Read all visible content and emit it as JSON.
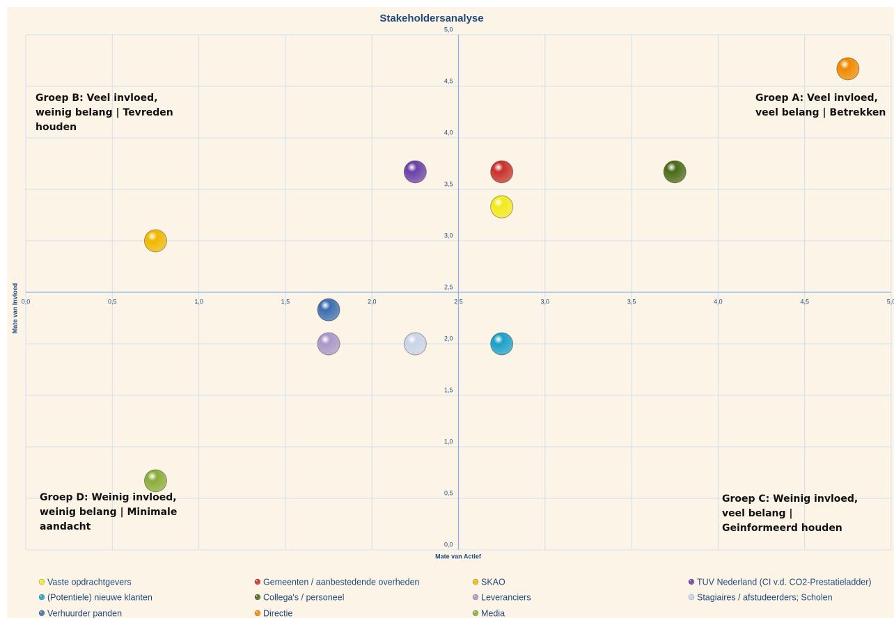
{
  "chart_data": {
    "type": "scatter",
    "title": "Stakeholdersanalyse",
    "x_label": "Mate van Actief",
    "y_label": "Mate van Invloed",
    "xlim": [
      0,
      5
    ],
    "ylim": [
      0,
      5
    ],
    "xticks": [
      {
        "value": 0,
        "label": "0,0"
      },
      {
        "value": 0.5,
        "label": "0,5"
      },
      {
        "value": 1,
        "label": "1,0"
      },
      {
        "value": 1.5,
        "label": "1,5"
      },
      {
        "value": 2,
        "label": "2,0"
      },
      {
        "value": 2.5,
        "label": "2,5"
      },
      {
        "value": 3,
        "label": "3,0"
      },
      {
        "value": 3.5,
        "label": "3,5"
      },
      {
        "value": 4,
        "label": "4,0"
      },
      {
        "value": 4.5,
        "label": "4,5"
      },
      {
        "value": 5,
        "label": "5,0"
      }
    ],
    "yticks": [
      {
        "value": 0,
        "label": "0,0"
      },
      {
        "value": 0.5,
        "label": "0,5"
      },
      {
        "value": 1,
        "label": "1,0"
      },
      {
        "value": 1.5,
        "label": "1,5"
      },
      {
        "value": 2,
        "label": "2,0"
      },
      {
        "value": 2.5,
        "label": "2,5"
      },
      {
        "value": 3,
        "label": "3,0"
      },
      {
        "value": 3.5,
        "label": "3,5"
      },
      {
        "value": 4,
        "label": "4,0"
      },
      {
        "value": 4.5,
        "label": "4,5"
      },
      {
        "value": 5,
        "label": "5,0"
      }
    ],
    "axis_cross": [
      2.5,
      2.5
    ],
    "grid": true,
    "annotations": [
      "Groep B: Veel invloed, weinig belang | Tevreden houden",
      "Groep A: Veel invloed, veel belang | Betrekken",
      "Groep D: Weinig invloed, weinig belang | Minimale aandacht",
      "Groep C: Weinig invloed, veel belang | Geinformeerd houden"
    ],
    "series": [
      {
        "name": "Vaste opdrachtgevers",
        "color": "#f2ea1a",
        "x": [
          2.75
        ],
        "values": [
          3.33
        ]
      },
      {
        "name": "Gemeenten / aanbestedende overheden",
        "color": "#c8302c",
        "x": [
          2.75
        ],
        "values": [
          3.67
        ]
      },
      {
        "name": " SKAO",
        "color": "#f0b800",
        "x": [
          0.75
        ],
        "values": [
          3.0
        ]
      },
      {
        "name": "TUV Nederland (CI v.d. CO2-Prestatieladder)",
        "color": "#6a40a8",
        "x": [
          2.25
        ],
        "values": [
          3.67
        ]
      },
      {
        "name": "(Potentiele) nieuwe klanten",
        "color": "#1aa0c8",
        "x": [
          2.75
        ],
        "values": [
          2.0
        ]
      },
      {
        "name": "Collega's / personeel",
        "color": "#4a6a18",
        "x": [
          3.75
        ],
        "values": [
          3.67
        ]
      },
      {
        "name": "Leveranciers",
        "color": "#a898c8",
        "x": [
          1.75
        ],
        "values": [
          2.0
        ]
      },
      {
        "name": "Stagiaires / afstudeerders; Scholen",
        "color": "#c8d4e8",
        "x": [
          2.25
        ],
        "values": [
          2.0
        ]
      },
      {
        "name": "Verhuurder panden",
        "color": "#3a6eb0",
        "x": [
          1.75
        ],
        "values": [
          2.33
        ]
      },
      {
        "name": "Directie",
        "color": "#f08a00",
        "x": [
          4.75
        ],
        "values": [
          4.67
        ]
      },
      {
        "name": "Media",
        "color": "#8aac3a",
        "x": [
          0.75
        ],
        "values": [
          0.67
        ]
      }
    ]
  }
}
